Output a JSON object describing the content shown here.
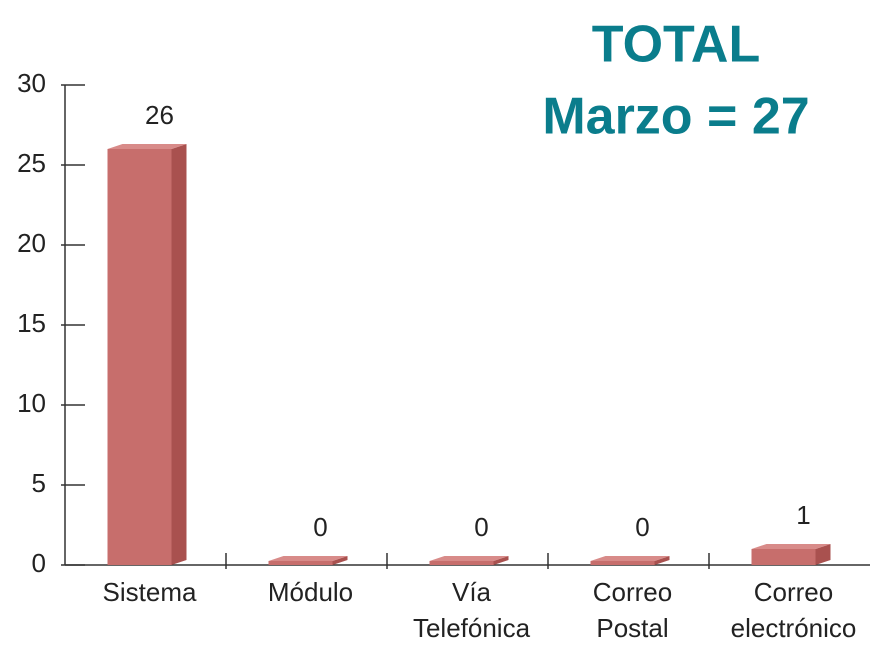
{
  "chart_data": {
    "type": "bar3d",
    "title": [
      "TOTAL",
      "Marzo = 27"
    ],
    "categories": [
      "Sistema",
      "Módulo",
      "Vía Telefónica",
      "Correo Postal",
      "Correo electrónico"
    ],
    "values": [
      26,
      0,
      0,
      0,
      1
    ],
    "color": "#c76e6c",
    "ylim": [
      0,
      30
    ],
    "yticks": [
      0,
      5,
      10,
      15,
      20,
      25,
      30
    ]
  }
}
